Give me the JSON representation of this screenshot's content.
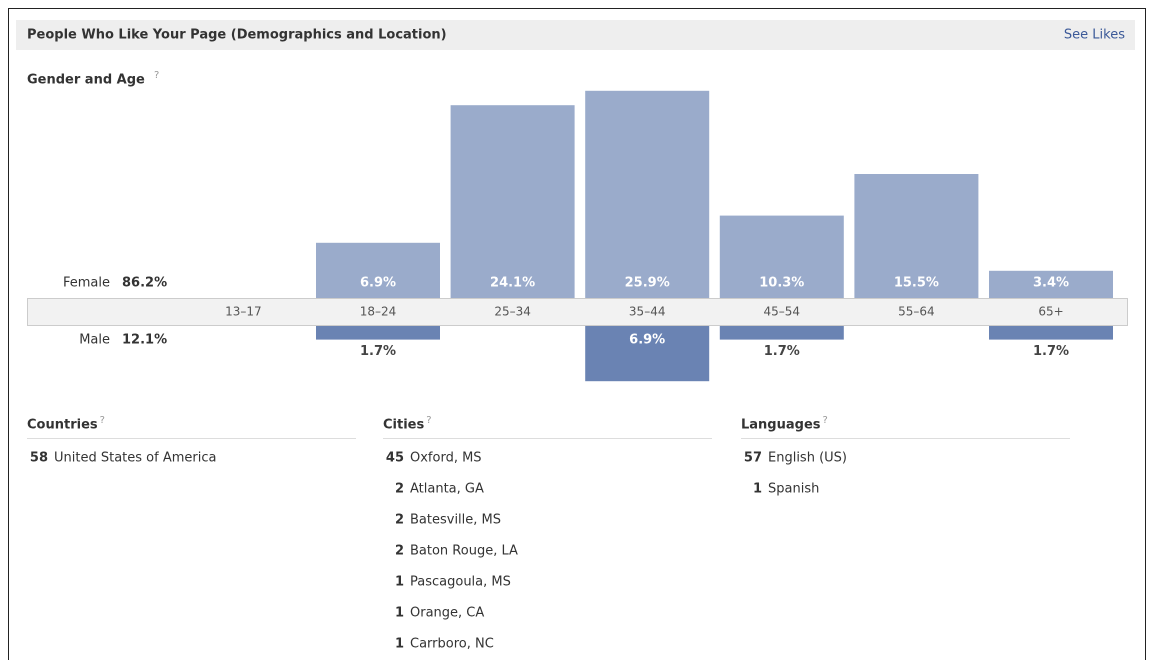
{
  "header": {
    "title": "People Who Like Your Page (Demographics and Location)",
    "link": "See Likes"
  },
  "chart_data": {
    "type": "bar",
    "title": "Gender and Age",
    "help_mark": "?",
    "categories": [
      "13–17",
      "18–24",
      "25–34",
      "35–44",
      "45–54",
      "55–64",
      "65+"
    ],
    "series": [
      {
        "name": "Female",
        "total": 86.2,
        "total_label": "86.2%",
        "color": "#9aabcb",
        "values": [
          0,
          6.9,
          24.1,
          25.9,
          10.3,
          15.5,
          3.4
        ],
        "value_labels": [
          null,
          "6.9%",
          "24.1%",
          "25.9%",
          "10.3%",
          "15.5%",
          "3.4%"
        ]
      },
      {
        "name": "Male",
        "total": 12.1,
        "total_label": "12.1%",
        "color": "#6a83b3",
        "values": [
          0,
          1.7,
          0,
          6.9,
          1.7,
          0,
          1.7
        ],
        "value_labels": [
          null,
          "1.7%",
          null,
          "6.9%",
          "1.7%",
          null,
          "1.7%"
        ]
      }
    ]
  },
  "lists": [
    {
      "title": "Countries",
      "help_mark": "?",
      "items": [
        {
          "count": 58,
          "name": "United States of America"
        }
      ]
    },
    {
      "title": "Cities",
      "help_mark": "?",
      "items": [
        {
          "count": 45,
          "name": "Oxford, MS"
        },
        {
          "count": 2,
          "name": "Atlanta, GA"
        },
        {
          "count": 2,
          "name": "Batesville, MS"
        },
        {
          "count": 2,
          "name": "Baton Rouge, LA"
        },
        {
          "count": 1,
          "name": "Pascagoula, MS"
        },
        {
          "count": 1,
          "name": "Orange, CA"
        },
        {
          "count": 1,
          "name": "Carrboro, NC"
        }
      ]
    },
    {
      "title": "Languages",
      "help_mark": "?",
      "items": [
        {
          "count": 57,
          "name": "English (US)"
        },
        {
          "count": 1,
          "name": "Spanish"
        }
      ]
    }
  ]
}
